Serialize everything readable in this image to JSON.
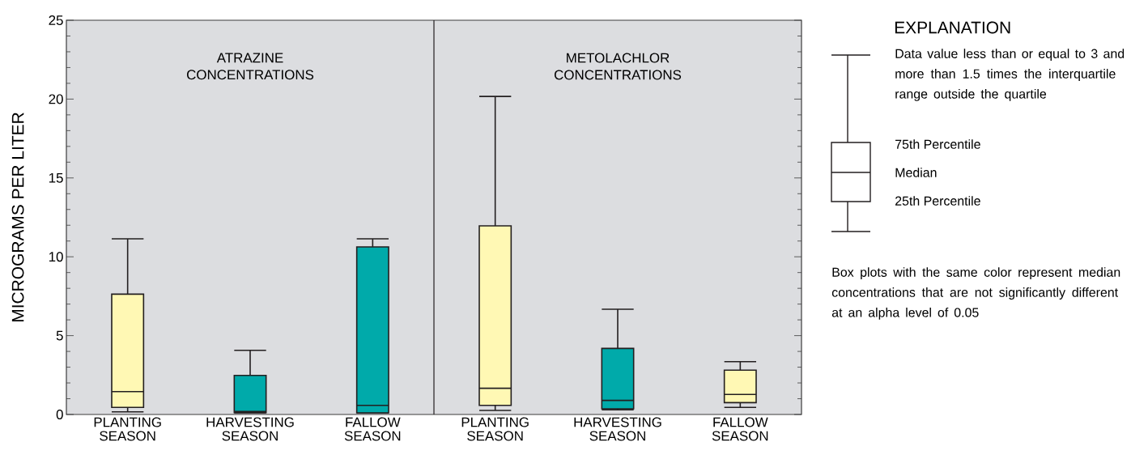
{
  "chart_data": {
    "type": "box",
    "categories": [
      "PLANTING SEASON",
      "HARVESTING SEASON",
      "FALLOW SEASON",
      "PLANTING SEASON",
      "HARVESTING SEASON",
      "FALLOW SEASON"
    ],
    "boxes": [
      {
        "low": 0.17,
        "q1": 0.45,
        "median": 1.45,
        "q3": 7.63,
        "high": 11.14
      },
      {
        "low": 0.1,
        "q1": 0.12,
        "median": 0.19,
        "q3": 2.48,
        "high": 4.07
      },
      {
        "low": 0.1,
        "q1": 0.1,
        "median": 0.58,
        "q3": 10.63,
        "high": 11.14
      },
      {
        "low": 0.26,
        "q1": 0.58,
        "median": 1.66,
        "q3": 11.96,
        "high": 20.17
      },
      {
        "low": 0.3,
        "q1": 0.36,
        "median": 0.89,
        "q3": 4.19,
        "high": 6.67
      },
      {
        "low": 0.45,
        "q1": 0.75,
        "median": 1.27,
        "q3": 2.81,
        "high": 3.35
      }
    ],
    "colors": [
      "#fff8b4",
      "#00aaaa",
      "#00aaaa",
      "#fff8b4",
      "#00aaaa",
      "#fff8b4"
    ],
    "ylim": [
      0,
      25
    ],
    "yticks": [
      0,
      5,
      10,
      15,
      20,
      25
    ],
    "ylabel": "MICROGRAMS PER LITER",
    "annotations": [
      "ATRAZINE CONCENTRATIONS",
      "METOLACHLOR CONCENTRATIONS",
      "EXPLANATION",
      "Data value less than or equal to 3 and more than 1.5 times the interquartile range outside the quartile",
      "75th Percentile",
      "Median",
      "25th Percentile",
      "Box plots with the same color represent median concentrations that are not significantly different at an alpha level of 0.05"
    ]
  }
}
